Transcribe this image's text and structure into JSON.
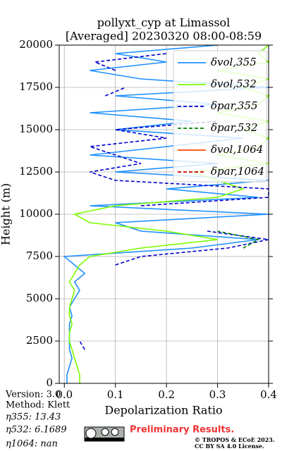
{
  "chart_data": {
    "type": "line",
    "title": "pollyxt_cyp at Limassol",
    "subtitle": "[Averaged] 20230320 08:00-08:59",
    "x_label": "Depolarization Ratio",
    "y_label": "Height (m)",
    "xlim": [
      -0.01,
      0.4
    ],
    "ylim": [
      0,
      20000
    ],
    "xticks": [
      {
        "value": 0,
        "label": "0.0"
      },
      0.1,
      0.2,
      0.3,
      0.4
    ],
    "yticks": [
      0,
      2500,
      5000,
      7500,
      10000,
      12500,
      15000,
      17500,
      20000
    ],
    "grid": true,
    "legend": "upper right",
    "y": [
      0,
      500,
      1000,
      1500,
      2000,
      2500,
      3000,
      3500,
      4000,
      4500,
      5000,
      5500,
      6000,
      6500,
      7000,
      7500,
      8000,
      8500,
      9000,
      9500,
      10000,
      10500,
      11000,
      11500,
      12000,
      12500,
      13000,
      13500,
      14000,
      14500,
      15000,
      15500,
      16000,
      16500,
      17000,
      17500,
      18000,
      18500,
      19000,
      19500,
      20000
    ],
    "series": [
      {
        "name": "δvol,355",
        "color": "#1e90ff",
        "dash": false,
        "values": [
          0.005,
          0.005,
          0.01,
          0.015,
          0.01,
          0.01,
          0.01,
          0.01,
          0.015,
          0.01,
          0.02,
          0.03,
          0.02,
          0.04,
          0.02,
          0.0,
          0.25,
          0.38,
          0.15,
          0.1,
          0.4,
          0.05,
          0.38,
          0.2,
          0.4,
          0.1,
          0.3,
          0.05,
          0.2,
          0.35,
          0.1,
          0.25,
          0.05,
          0.3,
          0.1,
          0.4,
          0.15,
          0.05,
          0.2,
          0.1,
          0.3
        ]
      },
      {
        "name": "δvol,532",
        "color": "#7cfc00",
        "dash": false,
        "values": [
          0.03,
          0.03,
          0.025,
          0.02,
          0.015,
          0.01,
          0.01,
          0.015,
          0.01,
          0.01,
          0.015,
          0.02,
          0.01,
          0.02,
          0.03,
          0.05,
          0.15,
          0.3,
          0.2,
          0.05,
          0.02,
          0.1,
          0.3,
          0.35,
          0.3,
          0.25,
          0.4,
          0.3,
          0.38,
          0.4,
          0.35,
          0.4,
          0.3,
          0.38,
          0.4,
          0.35,
          0.4,
          0.3,
          0.4,
          0.38,
          0.4
        ]
      },
      {
        "name": "δpar,355",
        "color": "#0000cd",
        "dash": true,
        "values": [
          null,
          null,
          null,
          null,
          0.04,
          0.03,
          null,
          null,
          null,
          null,
          null,
          null,
          null,
          null,
          0.1,
          0.15,
          0.32,
          0.4,
          0.28,
          null,
          null,
          0.15,
          0.4,
          0.4,
          0.1,
          0.05,
          0.15,
          0.1,
          0.05,
          0.2,
          0.1,
          0.3,
          null,
          null,
          0.08,
          0.12,
          null,
          0.1,
          0.06,
          0.2,
          null
        ]
      },
      {
        "name": "δpar,532",
        "color": "#008000",
        "dash": true,
        "values": [
          null,
          null,
          null,
          null,
          null,
          null,
          null,
          null,
          null,
          null,
          null,
          null,
          null,
          null,
          null,
          null,
          0.35,
          0.38,
          0.3,
          null,
          null,
          null,
          null,
          null,
          null,
          null,
          null,
          null,
          null,
          null,
          null,
          null,
          null,
          null,
          null,
          null,
          null,
          null,
          null,
          null,
          null
        ]
      },
      {
        "name": "δvol,1064",
        "color": "#ff4500",
        "dash": false,
        "values": [
          null,
          null,
          null,
          null,
          null,
          null,
          null,
          null,
          null,
          null,
          null,
          null,
          null,
          null,
          null,
          null,
          null,
          null,
          null,
          null,
          null,
          null,
          null,
          null,
          null,
          null,
          null,
          null,
          null,
          null,
          null,
          null,
          null,
          null,
          null,
          null,
          null,
          null,
          null,
          null,
          null
        ]
      },
      {
        "name": "δpar,1064",
        "color": "#cc0000",
        "dash": true,
        "values": [
          null,
          null,
          null,
          null,
          null,
          null,
          null,
          null,
          null,
          null,
          null,
          null,
          null,
          null,
          null,
          null,
          null,
          null,
          null,
          null,
          null,
          null,
          null,
          null,
          null,
          null,
          null,
          null,
          null,
          null,
          null,
          null,
          null,
          null,
          null,
          null,
          null,
          null,
          null,
          null,
          null
        ]
      }
    ],
    "annotations": [
      "Version: 3.0",
      "Method: Klett",
      "η355:  13.43",
      "η532: 6.1689",
      "η1064:    nan"
    ],
    "watermark": "Preliminary Results.",
    "copyright": [
      "© TROPOS & ECoE 2023.",
      "CC BY SA 4.0 License."
    ]
  }
}
